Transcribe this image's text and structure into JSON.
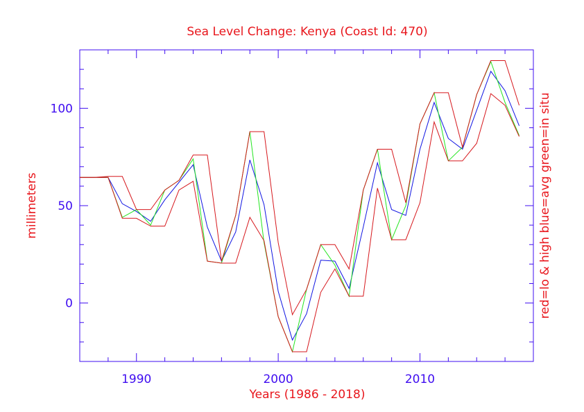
{
  "chart_data": {
    "type": "line",
    "title": "Sea Level Change: Kenya (Coast Id: 470)",
    "xlabel": "Years (1986 - 2018)",
    "ylabel": "millimeters",
    "ylabel_right": "red=lo & high  blue=avg  green=in situ",
    "xlim": [
      1986,
      2018
    ],
    "ylim": [
      -30,
      130
    ],
    "xticks": [
      1990,
      2000,
      2010
    ],
    "yticks": [
      0,
      50,
      100
    ],
    "colors": {
      "frame": "#3f0df0",
      "text": "#e8161c",
      "red": "#d6171c",
      "blue": "#0f14e2",
      "green": "#22e51f"
    },
    "x": [
      1986,
      1987,
      1988,
      1989,
      1990,
      1991,
      1992,
      1993,
      1994,
      1995,
      1996,
      1997,
      1998,
      1999,
      2000,
      2001,
      2002,
      2003,
      2004,
      2005,
      2006,
      2007,
      2008,
      2009,
      2010,
      2011,
      2012,
      2013,
      2014,
      2015,
      2016,
      2017
    ],
    "series": [
      {
        "name": "avg",
        "color_key": "blue",
        "values": [
          64.5,
          64.5,
          64.5,
          51,
          47,
          42,
          53,
          62,
          71,
          39,
          21.5,
          36.5,
          73.5,
          50.5,
          6,
          -19,
          -5.5,
          22,
          21.5,
          7.5,
          39,
          72,
          48,
          45,
          79,
          103,
          84.5,
          79,
          99,
          119,
          109,
          91
        ]
      },
      {
        "name": "in situ",
        "color_key": "green",
        "values": [
          64.5,
          64.5,
          64.5,
          44,
          48,
          40,
          58,
          63,
          74,
          21.5,
          20.5,
          45,
          88,
          31,
          -7,
          -25,
          7,
          30,
          19.5,
          3.5,
          58,
          79,
          32.5,
          50,
          92,
          108,
          73,
          80,
          107,
          124,
          103,
          86
        ]
      },
      {
        "name": "low",
        "color_key": "red",
        "values": [
          64.5,
          64.5,
          64.5,
          43.5,
          43.5,
          39.5,
          39.5,
          58,
          62.5,
          21.5,
          20.5,
          20.5,
          44,
          32,
          -7,
          -25,
          -25,
          5.5,
          17.5,
          3.5,
          3.5,
          59,
          32.5,
          32.5,
          51.5,
          93,
          73,
          73,
          82,
          107.5,
          101.5,
          85.5
        ]
      },
      {
        "name": "high",
        "color_key": "red",
        "values": [
          64.5,
          64.5,
          65,
          65,
          48,
          48,
          58,
          63,
          76,
          76,
          21.5,
          45,
          88,
          88,
          31,
          -6,
          7,
          30,
          30,
          17.5,
          58,
          79,
          79,
          51.5,
          92,
          108,
          108,
          80,
          107,
          124.5,
          124.5,
          101.5
        ]
      }
    ]
  }
}
